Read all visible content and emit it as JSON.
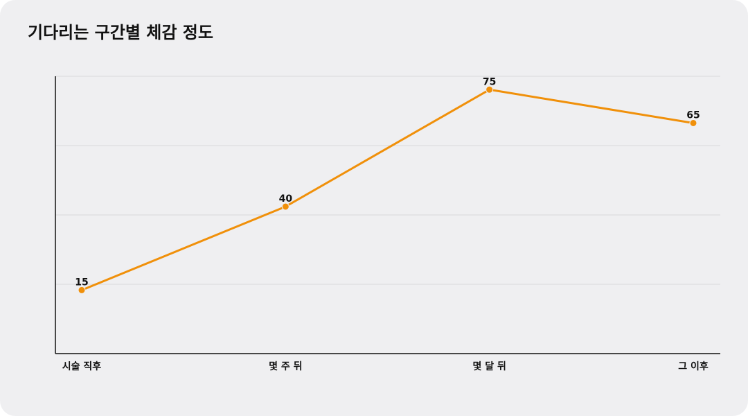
{
  "chart_data": {
    "type": "line",
    "title": "기다리는 구간별 체감 정도",
    "categories": [
      "시술 직후",
      "몇 주 뒤",
      "몇 달 뒤",
      "그 이후"
    ],
    "values": [
      15,
      40,
      75,
      65
    ],
    "color": "#f0900a",
    "ylim": [
      -4,
      79
    ],
    "grid": true
  }
}
